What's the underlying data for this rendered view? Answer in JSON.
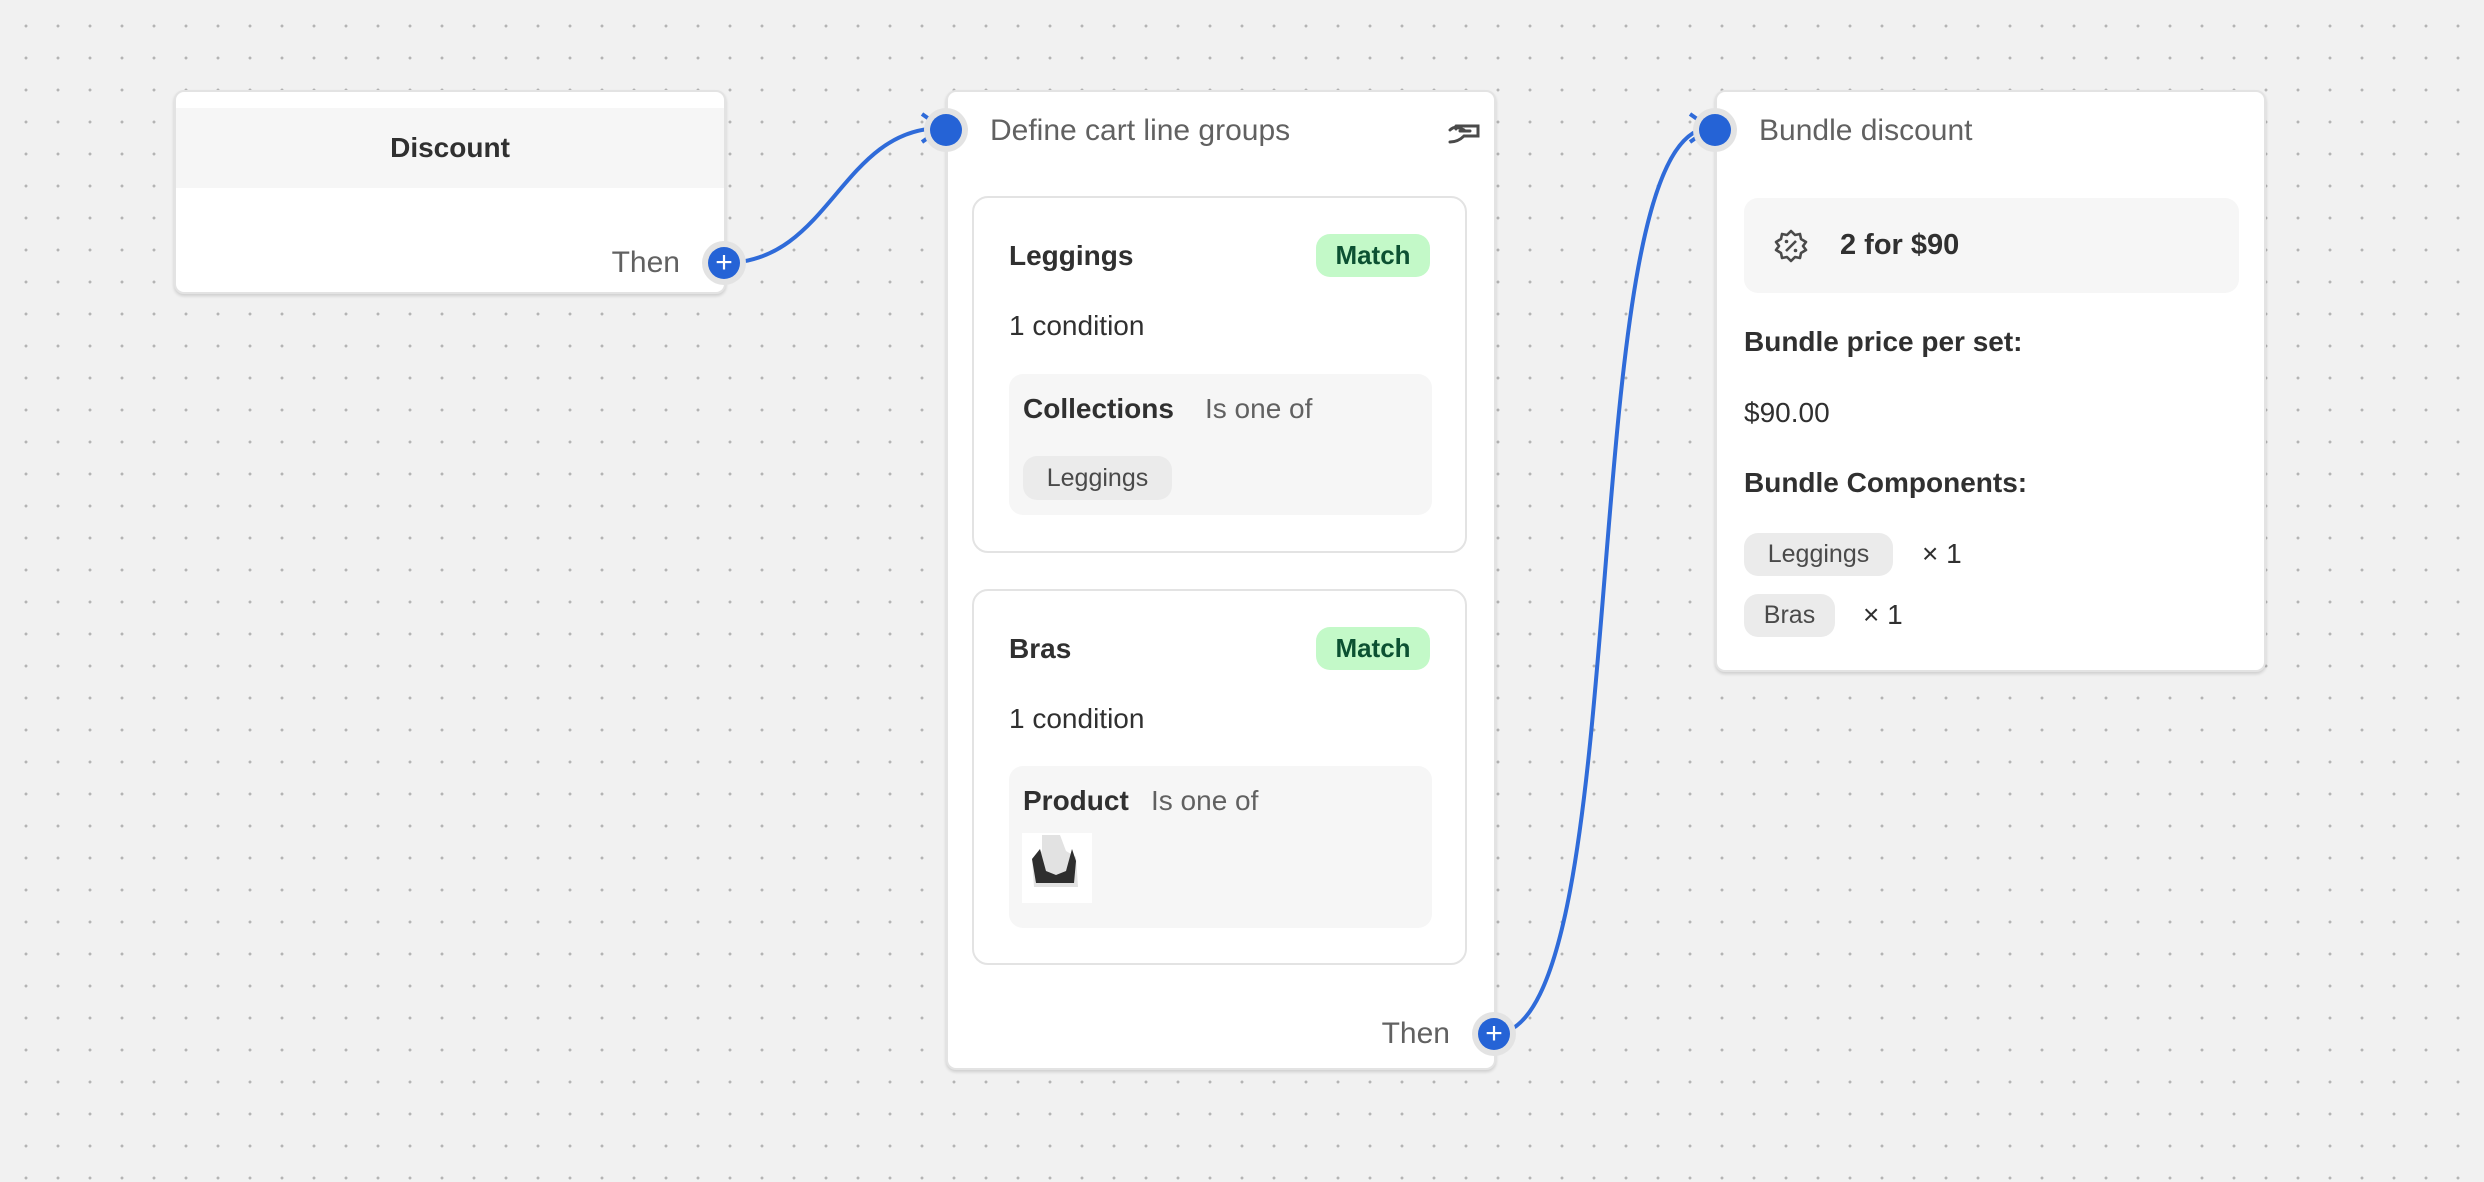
{
  "discount_node": {
    "title": "Discount",
    "then_label": "Then"
  },
  "groups_node": {
    "title": "Define cart line groups",
    "icon": "hand-card-icon",
    "then_label": "Then",
    "groups": [
      {
        "name": "Leggings",
        "badge": "Match",
        "conditions": "1 condition",
        "field": "Collections",
        "operator": "Is one of",
        "value": "Leggings"
      },
      {
        "name": "Bras",
        "badge": "Match",
        "conditions": "1 condition",
        "field": "Product",
        "operator": "Is one of",
        "value_image": "sports-bra-product-image"
      }
    ]
  },
  "bundle_node": {
    "title": "Bundle discount",
    "summary": "2 for $90",
    "summary_icon": "discount-badge-icon",
    "price_label": "Bundle price per set:",
    "price_value": "$90.00",
    "components_label": "Bundle Components:",
    "components": [
      {
        "name": "Leggings",
        "qty": "× 1"
      },
      {
        "name": "Bras",
        "qty": "× 1"
      }
    ]
  },
  "colors": {
    "edge": "#2563d6",
    "match_bg": "#c3f9c8"
  }
}
